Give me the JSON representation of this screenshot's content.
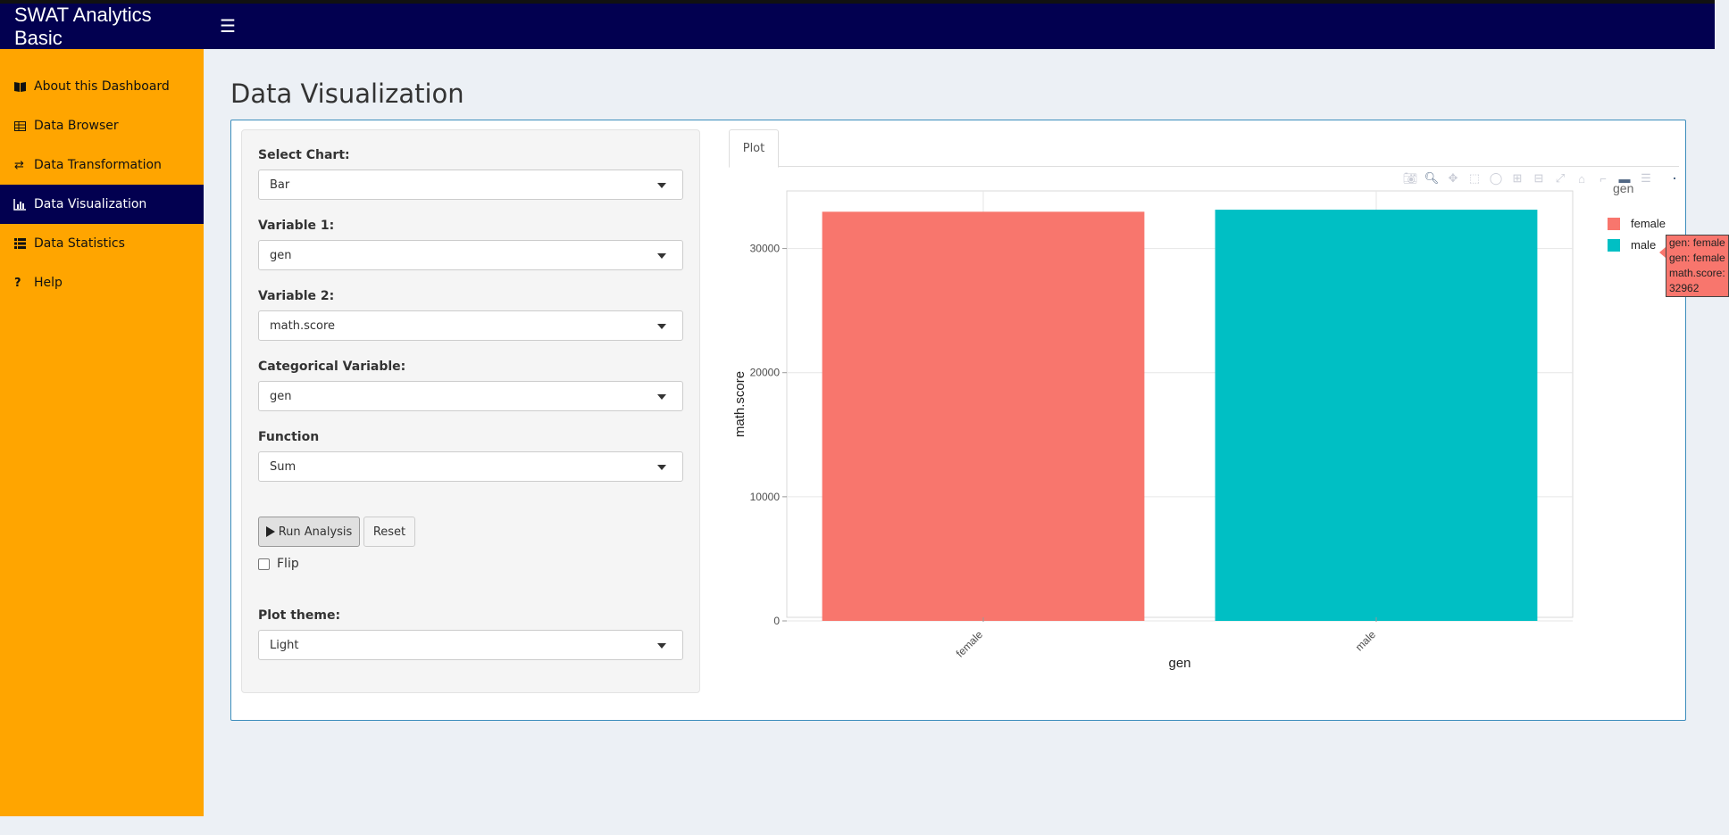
{
  "header": {
    "title": "SWAT Analytics Basic",
    "menu_icon": "hamburger-icon"
  },
  "sidebar": {
    "items": [
      {
        "label": "About this Dashboard",
        "icon": "book-icon"
      },
      {
        "label": "Data Browser",
        "icon": "table-icon"
      },
      {
        "label": "Data Transformation",
        "icon": "exchange-icon"
      },
      {
        "label": "Data Visualization",
        "icon": "bar-chart-icon",
        "active": true
      },
      {
        "label": "Data Statistics",
        "icon": "list-icon"
      },
      {
        "label": "Help",
        "icon": "question-icon"
      }
    ]
  },
  "page": {
    "title": "Data Visualization"
  },
  "controls": {
    "chart": {
      "label": "Select Chart:",
      "value": "Bar"
    },
    "var1": {
      "label": "Variable 1:",
      "value": "gen"
    },
    "var2": {
      "label": "Variable 2:",
      "value": "math.score"
    },
    "cat": {
      "label": "Categorical Variable:",
      "value": "gen"
    },
    "func": {
      "label": "Function",
      "value": "Sum"
    },
    "run_label": "Run Analysis",
    "reset_label": "Reset",
    "flip_label": "Flip",
    "flip_checked": false,
    "theme": {
      "label": "Plot theme:",
      "value": "Light"
    }
  },
  "tabs": [
    {
      "label": "Plot",
      "active": true
    }
  ],
  "chart_data": {
    "type": "bar",
    "categories": [
      "female",
      "male"
    ],
    "values": [
      32962,
      33127
    ],
    "colors": [
      "#f8766d",
      "#00bfc4"
    ],
    "xlabel": "gen",
    "ylabel": "math.score",
    "ylim": [
      0,
      35000
    ],
    "yticks": [
      0,
      10000,
      20000,
      30000
    ],
    "grid": true,
    "legend": {
      "title": "gen",
      "placement": "right",
      "entries": [
        "female",
        "male"
      ]
    },
    "tooltip": {
      "lines": [
        "gen: female",
        "gen: female",
        "math.score: 32962"
      ]
    }
  },
  "colors": {
    "header": "#020050",
    "sidebar": "#ffa500",
    "active_item": "#020050",
    "box_border": "#3c8dbc"
  }
}
